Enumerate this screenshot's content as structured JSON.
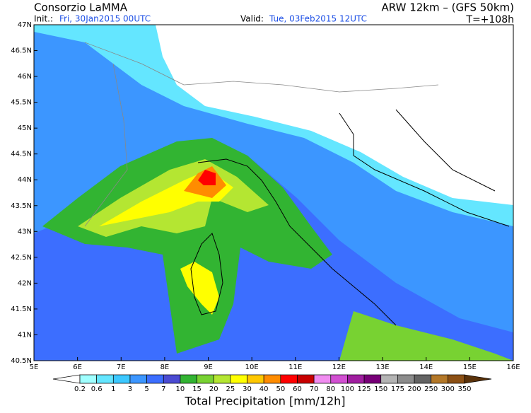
{
  "header": {
    "org": "Consorzio LaMMA",
    "init_label": "Init.:",
    "init": "Fri, 30Jan2015 00UTC",
    "valid_label": "Valid:",
    "valid": "Tue, 03Feb2015 12UTC",
    "model": "ARW 12km – (GFS 50km)",
    "lead": "T=+108h"
  },
  "map": {
    "lat_labels": [
      "47N",
      "46.5N",
      "46N",
      "45.5N",
      "45N",
      "44.5N",
      "44N",
      "43.5N",
      "43N",
      "42.5N",
      "42N",
      "41.5N",
      "41N",
      "40.5N"
    ],
    "lon_labels": [
      "5E",
      "6E",
      "7E",
      "8E",
      "9E",
      "10E",
      "11E",
      "12E",
      "13E",
      "14E",
      "15E",
      "16E"
    ]
  },
  "colorbar": {
    "labels": [
      "0.2",
      "0.6",
      "1",
      "3",
      "5",
      "7",
      "10",
      "15",
      "20",
      "25",
      "30",
      "40",
      "50",
      "60",
      "70",
      "80",
      "100",
      "125",
      "150",
      "175",
      "200",
      "250",
      "300",
      "350"
    ],
    "colors": [
      "#ffffff",
      "#a0ffff",
      "#64e6ff",
      "#3cc8ff",
      "#3c96ff",
      "#3c6eff",
      "#4b4bd2",
      "#32b432",
      "#78d232",
      "#b4e632",
      "#ffff00",
      "#ffc800",
      "#ff8c00",
      "#ff0000",
      "#c80000",
      "#f08cf0",
      "#d250d2",
      "#a01ea0",
      "#780078",
      "#b4b4b4",
      "#8c8c8c",
      "#646464",
      "#b47828",
      "#8c5014",
      "#5a320a"
    ],
    "title": "Total Precipitation [mm/12h]"
  }
}
